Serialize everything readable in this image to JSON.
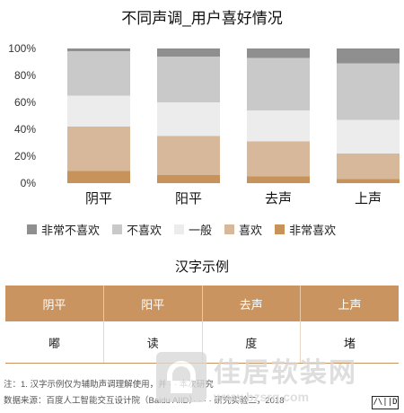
{
  "chart_data": {
    "type": "bar",
    "stacked": true,
    "title": "不同声调_用户喜好情况",
    "categories": [
      "阴平",
      "阳平",
      "去声",
      "上声"
    ],
    "y_ticks": [
      "0%",
      "20%",
      "40%",
      "60%",
      "80%",
      "100%"
    ],
    "ylim": [
      0,
      100
    ],
    "grid": false,
    "legend_position": "bottom",
    "series": [
      {
        "name": "非常喜欢",
        "color": "#c8935a",
        "values": [
          9,
          6,
          5,
          3
        ]
      },
      {
        "name": "喜欢",
        "color": "#d8b89a",
        "values": [
          33,
          29,
          26,
          19
        ]
      },
      {
        "name": "一般",
        "color": "#ececec",
        "values": [
          23,
          25,
          23,
          25
        ]
      },
      {
        "name": "不喜欢",
        "color": "#c9c9c9",
        "values": [
          33,
          34,
          39,
          42
        ]
      },
      {
        "name": "非常不喜欢",
        "color": "#8f8f8f",
        "values": [
          2,
          6,
          7,
          11
        ]
      }
    ],
    "legend_order": [
      "非常不喜欢",
      "不喜欢",
      "一般",
      "喜欢",
      "非常喜欢"
    ]
  },
  "table": {
    "title": "汉字示例",
    "headers": [
      "阴平",
      "阳平",
      "去声",
      "上声"
    ],
    "row": [
      "嘟",
      "读",
      "度",
      "堵"
    ]
  },
  "footnotes": {
    "line1": "注：1. 汉字示例仅为辅助声调理解使用，并 · · 本次研究",
    "line2": "数据来源：百度人工智能交互设计院（Baidu AIID）· · · · 研究实验二，2018"
  },
  "watermark": {
    "main": "佳居软装网",
    "url": "www.bzsrq.com"
  },
  "badge": "/\\||D"
}
